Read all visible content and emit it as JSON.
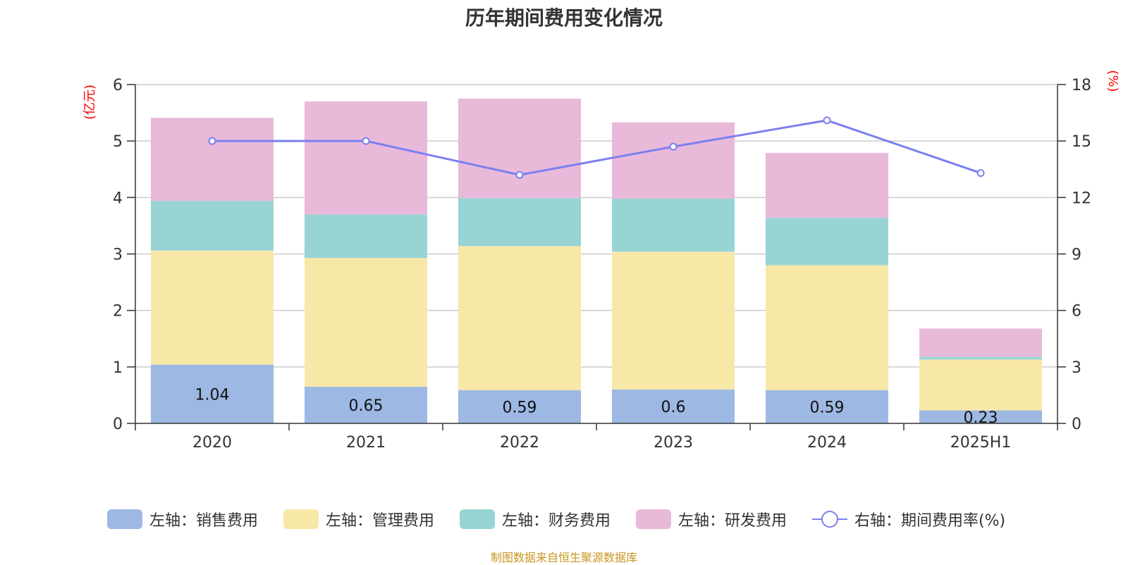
{
  "title": "历年期间费用变化情况",
  "footer": "制图数据来自恒生聚源数据库",
  "chart_data": {
    "type": "bar",
    "stacked": true,
    "categories": [
      "2020",
      "2021",
      "2022",
      "2023",
      "2024",
      "2025H1"
    ],
    "left_axis": {
      "label": "(亿元)",
      "range": [
        0,
        6
      ],
      "ticks": [
        "0",
        "1",
        "2",
        "3",
        "4",
        "5",
        "6"
      ],
      "color": "#ff0000"
    },
    "right_axis": {
      "label": "(%)",
      "range": [
        0,
        18
      ],
      "ticks": [
        "0",
        "3",
        "6",
        "9",
        "12",
        "15",
        "18"
      ],
      "color": "#ff0000"
    },
    "grid": true,
    "legend_position": "bottom",
    "series": [
      {
        "name": "左轴：销售费用",
        "axis": "left",
        "type": "bar",
        "color": "#9cb8e3",
        "values": [
          1.04,
          0.65,
          0.59,
          0.6,
          0.59,
          0.23
        ],
        "labels": [
          "1.04",
          "0.65",
          "0.59",
          "0.6",
          "0.59",
          "0.23"
        ]
      },
      {
        "name": "左轴：管理费用",
        "axis": "left",
        "type": "bar",
        "color": "#f8e8a8",
        "values": [
          2.02,
          2.28,
          2.55,
          2.44,
          2.21,
          0.9
        ]
      },
      {
        "name": "左轴：财务费用",
        "axis": "left",
        "type": "bar",
        "color": "#99d4d4",
        "values": [
          0.88,
          0.77,
          0.85,
          0.94,
          0.84,
          0.05
        ]
      },
      {
        "name": "左轴：研发费用",
        "axis": "left",
        "type": "bar",
        "color": "#e8b9d9",
        "values": [
          1.47,
          2.0,
          1.76,
          1.35,
          1.15,
          0.5
        ]
      },
      {
        "name": "右轴：期间费用率(%)",
        "axis": "right",
        "type": "line",
        "color": "#7b7ff0",
        "values": [
          15.0,
          15.0,
          13.2,
          14.7,
          16.1,
          13.3
        ]
      }
    ]
  }
}
